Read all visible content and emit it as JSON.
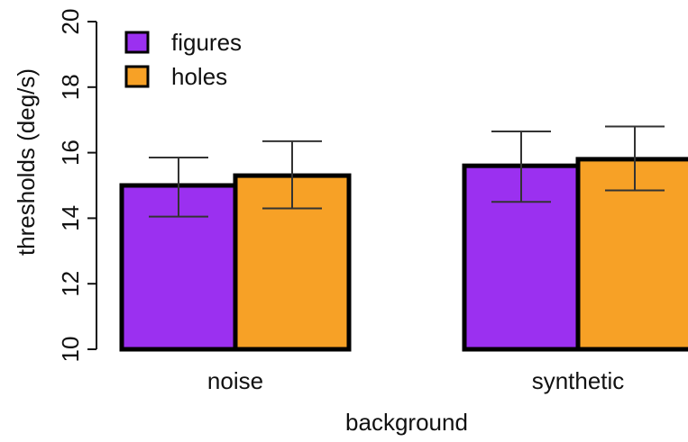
{
  "chart_data": {
    "type": "bar",
    "xlabel": "background",
    "ylabel": "thresholds (deg/s)",
    "categories": [
      "noise",
      "synthetic"
    ],
    "ylim": [
      10,
      20
    ],
    "yticks": [
      10,
      12,
      14,
      16,
      18,
      20
    ],
    "series": [
      {
        "name": "figures",
        "color": "#9B30F0",
        "values": [
          15.0,
          15.6
        ],
        "err_low": [
          14.05,
          14.5
        ],
        "err_high": [
          15.85,
          16.65
        ]
      },
      {
        "name": "holes",
        "color": "#F7A126",
        "values": [
          15.3,
          15.8
        ],
        "err_low": [
          14.3,
          14.85
        ],
        "err_high": [
          16.35,
          16.8
        ]
      }
    ],
    "grid": false,
    "legend_position": "top-left"
  }
}
